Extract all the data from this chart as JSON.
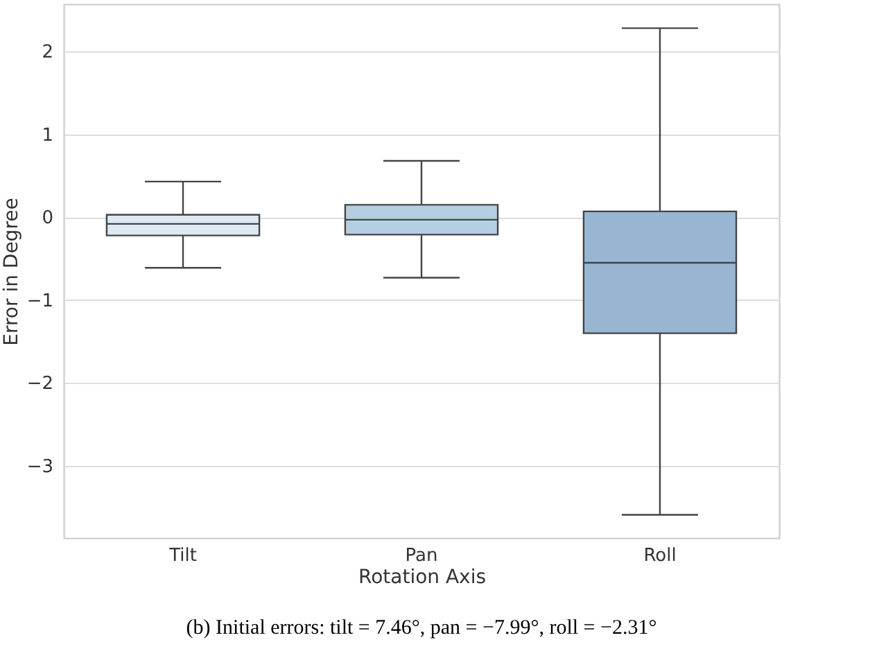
{
  "chart_data": {
    "type": "box",
    "xlabel": "Rotation Axis",
    "ylabel": "Error in Degree",
    "categories": [
      "Tilt",
      "Pan",
      "Roll"
    ],
    "boxes": [
      {
        "low": -0.61,
        "q1": -0.22,
        "median": -0.08,
        "q3": 0.03,
        "high": 0.43
      },
      {
        "low": -0.73,
        "q1": -0.21,
        "median": -0.03,
        "q3": 0.15,
        "high": 0.68
      },
      {
        "low": -3.59,
        "q1": -1.4,
        "median": -0.55,
        "q3": 0.07,
        "high": 2.28
      }
    ],
    "colors": [
      "#dde9f3",
      "#b4cfe2",
      "#98b6d2"
    ],
    "ylim": [
      -3.87,
      2.57
    ],
    "yticks": [
      -3,
      -2,
      -1,
      0,
      1,
      2
    ],
    "grid": "y",
    "annotations": [
      "(b) Initial errors: tilt = 7.46°, pan = −7.99°, roll = −2.31°"
    ]
  }
}
